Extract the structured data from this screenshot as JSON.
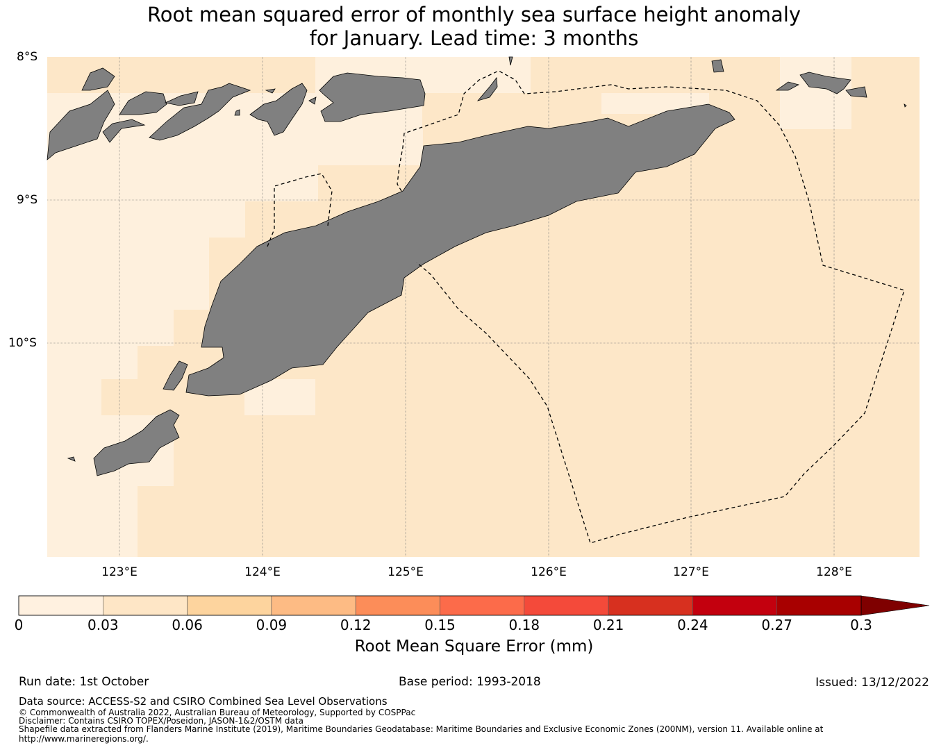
{
  "title": {
    "line1": "Root mean squared error of monthly sea surface height anomaly",
    "line2": "for January. Lead time: 3 months"
  },
  "map": {
    "lat_labels": [
      "8°S",
      "9°S",
      "10°S"
    ],
    "lon_labels": [
      "123°E",
      "124°E",
      "125°E",
      "126°E",
      "127°E",
      "128°E"
    ],
    "land_color": "#808080",
    "ocean_colors": [
      "#fef0dd",
      "#fde7c8"
    ],
    "boundary_style": "dashed"
  },
  "colorbar": {
    "ticks": [
      "0",
      "0.03",
      "0.06",
      "0.09",
      "0.12",
      "0.15",
      "0.18",
      "0.21",
      "0.24",
      "0.27",
      "0.3"
    ],
    "colors": [
      "#fff1e0",
      "#fee6c6",
      "#fdd49e",
      "#fdbb84",
      "#fc8d59",
      "#fc6b4a",
      "#f44a3a",
      "#d7301f",
      "#c3000e",
      "#a80000",
      "#7f0000"
    ],
    "label": "Root Mean Square Error (mm)"
  },
  "footer": {
    "run_date": "Run date: 1st October",
    "base_period": "Base period: 1993-2018",
    "issued": "Issued: 13/12/2022",
    "data_source": "Data source: ACCESS-S2 and CSIRO Combined Sea Level Observations",
    "copyright": "© Commonwealth of Australia 2022, Australian Bureau of Meteorology, Supported by COSPPac",
    "disclaimer": "Disclaimer: Contains CSIRO TOPEX/Poseidon, JASON-1&2/OSTM data",
    "shapefile": "Shapefile data extracted from Flanders Marine Institute (2019), Maritime Boundaries Geodatabase: Maritime Boundaries and Exclusive Economic Zones (200NM), version 11. Available online at",
    "url": "http://www.marineregions.org/."
  }
}
